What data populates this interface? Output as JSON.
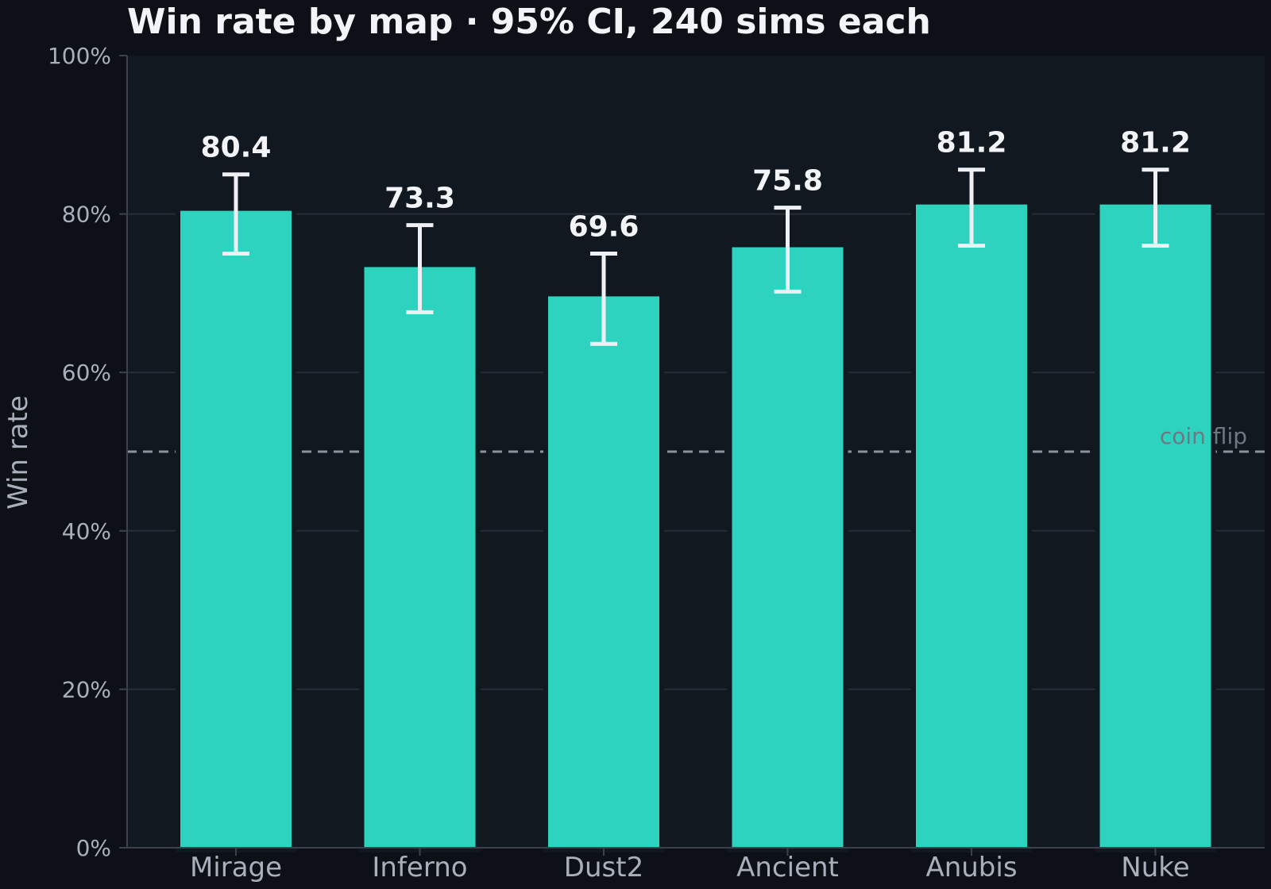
{
  "chart_data": {
    "type": "bar",
    "title": "Win rate by map  ·  95% CI, 240 sims each",
    "xlabel": "",
    "ylabel": "Win rate",
    "categories": [
      "Mirage",
      "Inferno",
      "Dust2",
      "Ancient",
      "Anubis",
      "Nuke"
    ],
    "values": [
      80.4,
      73.3,
      69.6,
      75.8,
      81.2,
      81.2
    ],
    "value_labels": [
      "80.4",
      "73.3",
      "69.6",
      "75.8",
      "81.2",
      "81.2"
    ],
    "ci_low": [
      75.0,
      67.6,
      63.6,
      70.2,
      76.0,
      76.0
    ],
    "ci_high": [
      85.0,
      78.6,
      75.0,
      80.8,
      85.6,
      85.6
    ],
    "ylim": [
      0,
      100
    ],
    "yticks": [
      0,
      20,
      40,
      60,
      80,
      100
    ],
    "ytick_labels": [
      "0%",
      "20%",
      "40%",
      "60%",
      "80%",
      "100%"
    ],
    "grid": true,
    "reference_line": {
      "value": 50,
      "label": "coin flip"
    },
    "colors": {
      "background": "#0d1117",
      "plot_background": "#121820",
      "bar": "#2ed3c0",
      "error_bar": "#eef0f3",
      "grid": "#262d36",
      "reference_line": "#8a929c",
      "reference_label": "#6e7782"
    }
  }
}
